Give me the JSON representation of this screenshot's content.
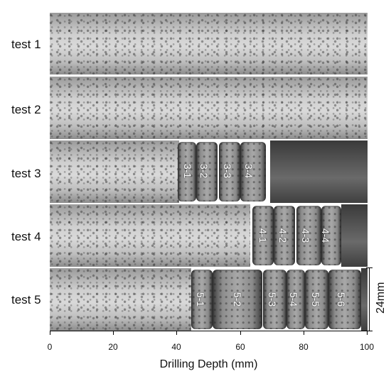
{
  "rows": [
    {
      "label": "test 1",
      "slabs": []
    },
    {
      "label": "test 2",
      "slabs": []
    },
    {
      "label": "test 3",
      "slabs": [
        "3-1",
        "3-2",
        "3-3",
        "3-4"
      ]
    },
    {
      "label": "test 4",
      "slabs": [
        "4-1",
        "4-2",
        "4-3",
        "4-4"
      ]
    },
    {
      "label": "test 5",
      "slabs": [
        "5-1",
        "5-2",
        "5-3",
        "5-4",
        "5-5",
        "5-6"
      ]
    }
  ],
  "axis": {
    "title": "Drilling Depth (mm)",
    "ticks": [
      "0",
      "20",
      "40",
      "60",
      "80",
      "100"
    ]
  },
  "scale_bar": {
    "label": "24mm"
  }
}
